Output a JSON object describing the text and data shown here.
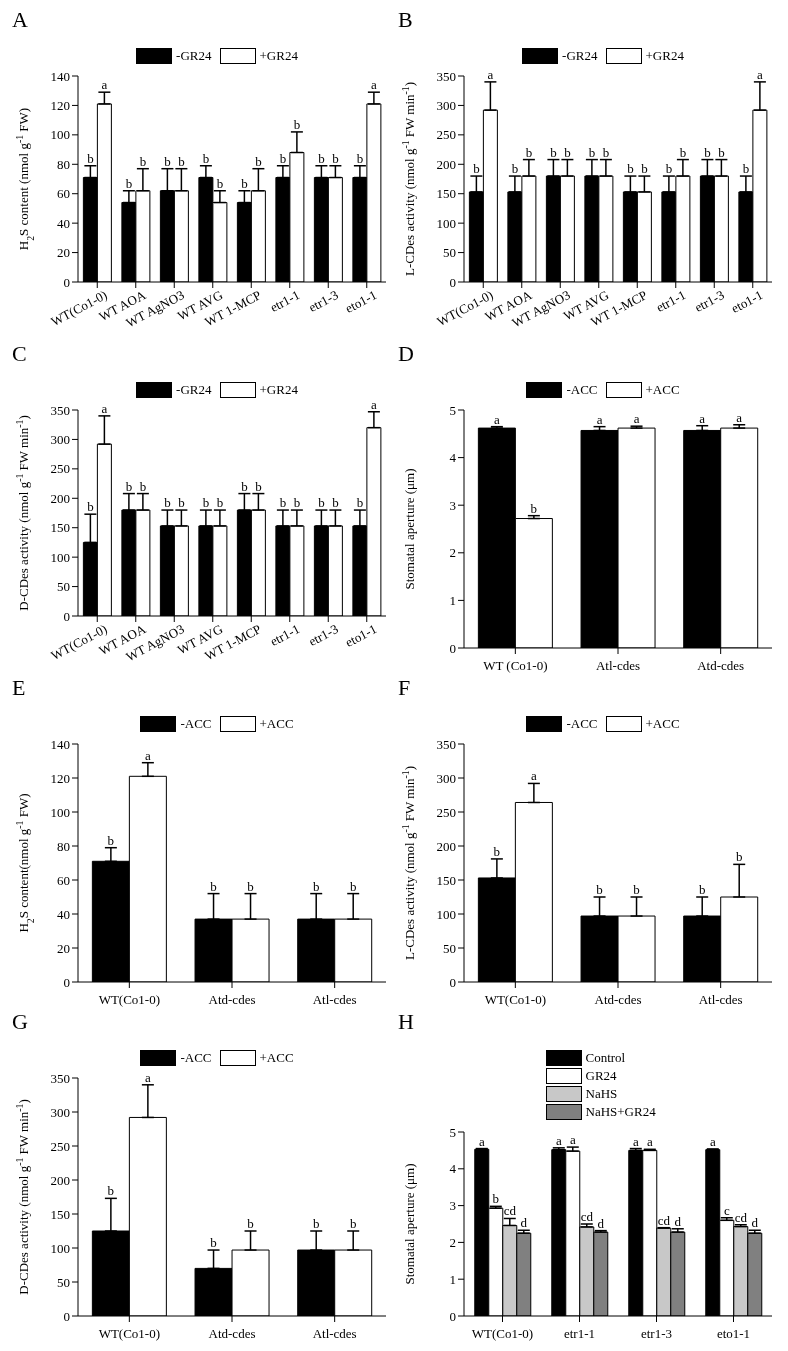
{
  "chart_data": [
    {
      "type": "bar",
      "title": "A",
      "ylabel": "H$_{2}$S content (nmol g$^{-1}$ FW)",
      "categories": [
        "WT(Co1-0)",
        "WT AOA",
        "WT AgNO3",
        "WT AVG",
        "WT 1-MCP",
        "etr1-1",
        "etr1-3",
        "eto1-1"
      ],
      "ylim": [
        0,
        140
      ],
      "yticks": [
        0,
        20,
        40,
        60,
        80,
        100,
        120,
        140
      ],
      "legend": "top",
      "series": [
        {
          "name": "-GR24",
          "color": "#000000",
          "values": [
            71,
            54,
            62,
            71,
            54,
            71,
            71,
            71
          ],
          "errors": [
            [
              71,
              79
            ],
            [
              54,
              62
            ],
            [
              62,
              77
            ],
            [
              71,
              79
            ],
            [
              54,
              62
            ],
            [
              71,
              79
            ],
            [
              71,
              79
            ],
            [
              71,
              79
            ]
          ],
          "value_labels": [
            "b",
            "b",
            "b",
            "b",
            "b",
            "b",
            "b",
            "b"
          ]
        },
        {
          "name": "+GR24",
          "color": "#ffffff",
          "values": [
            121,
            62,
            62,
            54,
            62,
            88,
            71,
            121
          ],
          "errors": [
            [
              121,
              129
            ],
            [
              62,
              77
            ],
            [
              62,
              77
            ],
            [
              54,
              62
            ],
            [
              62,
              77
            ],
            [
              88,
              102
            ],
            [
              71,
              79
            ],
            [
              121,
              129
            ]
          ],
          "value_labels": [
            "a",
            "b",
            "b",
            "b",
            "b",
            "b",
            "b",
            "a"
          ]
        }
      ]
    },
    {
      "type": "bar",
      "title": "B",
      "ylabel": "L-CDes activity (nmol g$^{-1}$ FW min$^{-1}$)",
      "categories": [
        "WT(Co1-0)",
        "WT AOA",
        "WT AgNO3",
        "WT AVG",
        "WT 1-MCP",
        "etr1-1",
        "etr1-3",
        "eto1-1"
      ],
      "ylim": [
        0,
        350
      ],
      "yticks": [
        0,
        50,
        100,
        150,
        200,
        250,
        300,
        350
      ],
      "legend": "top",
      "series": [
        {
          "name": "-GR24",
          "color": "#000000",
          "values": [
            153,
            153,
            180,
            180,
            153,
            153,
            180,
            153
          ],
          "errors": [
            [
              153,
              180
            ],
            [
              153,
              180
            ],
            [
              180,
              208
            ],
            [
              180,
              208
            ],
            [
              153,
              180
            ],
            [
              153,
              180
            ],
            [
              180,
              208
            ],
            [
              153,
              180
            ]
          ],
          "value_labels": [
            "b",
            "b",
            "b",
            "b",
            "b",
            "b",
            "b",
            "b"
          ]
        },
        {
          "name": "+GR24",
          "color": "#ffffff",
          "values": [
            292,
            180,
            180,
            180,
            153,
            180,
            180,
            292
          ],
          "errors": [
            [
              292,
              340
            ],
            [
              180,
              208
            ],
            [
              180,
              208
            ],
            [
              180,
              208
            ],
            [
              153,
              180
            ],
            [
              180,
              208
            ],
            [
              180,
              208
            ],
            [
              292,
              340
            ]
          ],
          "value_labels": [
            "a",
            "b",
            "b",
            "b",
            "b",
            "b",
            "b",
            "a"
          ]
        }
      ]
    },
    {
      "type": "bar",
      "title": "C",
      "ylabel": "D-CDes activity (nmol g$^{-1}$ FW min$^{-1}$)",
      "categories": [
        "WT(Co1-0)",
        "WT AOA",
        "WT AgNO3",
        "WT AVG",
        "WT 1-MCP",
        "etr1-1",
        "etr1-3",
        "eto1-1"
      ],
      "ylim": [
        0,
        350
      ],
      "yticks": [
        0,
        50,
        100,
        150,
        200,
        250,
        300,
        350
      ],
      "legend": "top",
      "series": [
        {
          "name": "-GR24",
          "color": "#000000",
          "values": [
            125,
            180,
            153,
            153,
            180,
            153,
            153,
            153
          ],
          "errors": [
            [
              125,
              173
            ],
            [
              180,
              208
            ],
            [
              153,
              180
            ],
            [
              153,
              180
            ],
            [
              180,
              208
            ],
            [
              153,
              180
            ],
            [
              153,
              180
            ],
            [
              153,
              180
            ]
          ],
          "value_labels": [
            "b",
            "b",
            "b",
            "b",
            "b",
            "b",
            "b",
            "b"
          ]
        },
        {
          "name": "+GR24",
          "color": "#ffffff",
          "values": [
            292,
            180,
            153,
            153,
            180,
            153,
            153,
            320
          ],
          "errors": [
            [
              292,
              340
            ],
            [
              180,
              208
            ],
            [
              153,
              180
            ],
            [
              153,
              180
            ],
            [
              180,
              208
            ],
            [
              153,
              180
            ],
            [
              153,
              180
            ],
            [
              320,
              347
            ]
          ],
          "value_labels": [
            "a",
            "b",
            "b",
            "b",
            "b",
            "b",
            "b",
            "a"
          ]
        }
      ]
    },
    {
      "type": "bar",
      "title": "D",
      "ylabel": "Stomatal aperture (μm)",
      "categories": [
        "WT (Co1-0)",
        "Atl-cdes",
        "Atd-cdes"
      ],
      "ylim": [
        0,
        5
      ],
      "yticks": [
        0,
        1,
        2,
        3,
        4,
        5
      ],
      "legend": "top",
      "series": [
        {
          "name": "-ACC",
          "color": "#000000",
          "values": [
            4.62,
            4.57,
            4.57
          ],
          "errors": [
            [
              4.62,
              4.65
            ],
            [
              4.57,
              4.65
            ],
            [
              4.57,
              4.67
            ]
          ],
          "value_labels": [
            "a",
            "a",
            "a"
          ]
        },
        {
          "name": "+ACC",
          "color": "#ffffff",
          "values": [
            2.72,
            4.62,
            4.62
          ],
          "errors": [
            [
              2.72,
              2.78
            ],
            [
              4.62,
              4.66
            ],
            [
              4.62,
              4.69
            ]
          ],
          "value_labels": [
            "b",
            "a",
            "a"
          ]
        }
      ]
    },
    {
      "type": "bar",
      "title": "E",
      "ylabel": "H$_{2}$S content(nmol g$^{-1}$ FW)",
      "categories": [
        "WT(Co1-0)",
        "Atd-cdes",
        "Atl-cdes"
      ],
      "ylim": [
        0,
        140
      ],
      "yticks": [
        0,
        20,
        40,
        60,
        80,
        100,
        120,
        140
      ],
      "legend": "top",
      "series": [
        {
          "name": "-ACC",
          "color": "#000000",
          "values": [
            71,
            37,
            37
          ],
          "errors": [
            [
              71,
              79
            ],
            [
              37,
              52
            ],
            [
              37,
              52
            ]
          ],
          "value_labels": [
            "b",
            "b",
            "b"
          ]
        },
        {
          "name": "+ACC",
          "color": "#ffffff",
          "values": [
            121,
            37,
            37
          ],
          "errors": [
            [
              121,
              129
            ],
            [
              37,
              52
            ],
            [
              37,
              52
            ]
          ],
          "value_labels": [
            "a",
            "b",
            "b"
          ]
        }
      ]
    },
    {
      "type": "bar",
      "title": "F",
      "ylabel": "L-CDes activity (nmol g$^{-1}$ FW min$^{-1}$)",
      "categories": [
        "WT(Co1-0)",
        "Atd-cdes",
        "Atl-cdes"
      ],
      "ylim": [
        0,
        350
      ],
      "yticks": [
        0,
        50,
        100,
        150,
        200,
        250,
        300,
        350
      ],
      "legend": "top",
      "series": [
        {
          "name": "-ACC",
          "color": "#000000",
          "values": [
            153,
            97,
            97
          ],
          "errors": [
            [
              153,
              181
            ],
            [
              97,
              125
            ],
            [
              97,
              125
            ]
          ],
          "value_labels": [
            "b",
            "b",
            "b"
          ]
        },
        {
          "name": "+ACC",
          "color": "#ffffff",
          "values": [
            264,
            97,
            125
          ],
          "errors": [
            [
              264,
              292
            ],
            [
              97,
              125
            ],
            [
              125,
              173
            ]
          ],
          "value_labels": [
            "a",
            "b",
            "b"
          ]
        }
      ]
    },
    {
      "type": "bar",
      "title": "G",
      "ylabel": "D-CDes activity (nmol g$^{-1}$ FW min$^{-1}$)",
      "categories": [
        "WT(Co1-0)",
        "Atd-cdes",
        "Atl-cdes"
      ],
      "ylim": [
        0,
        350
      ],
      "yticks": [
        0,
        50,
        100,
        150,
        200,
        250,
        300,
        350
      ],
      "legend": "top",
      "series": [
        {
          "name": "-ACC",
          "color": "#000000",
          "values": [
            125,
            70,
            97
          ],
          "errors": [
            [
              125,
              173
            ],
            [
              70,
              97
            ],
            [
              97,
              125
            ]
          ],
          "value_labels": [
            "b",
            "b",
            "b"
          ]
        },
        {
          "name": "+ACC",
          "color": "#ffffff",
          "values": [
            292,
            97,
            97
          ],
          "errors": [
            [
              292,
              340
            ],
            [
              97,
              125
            ],
            [
              97,
              125
            ]
          ],
          "value_labels": [
            "a",
            "b",
            "b"
          ]
        }
      ]
    },
    {
      "type": "bar",
      "title": "H",
      "ylabel": "Stomatal aperture (μm)",
      "categories": [
        "WT(Co1-0)",
        "etr1-1",
        "etr1-3",
        "eto1-1"
      ],
      "ylim": [
        0,
        5
      ],
      "yticks": [
        0,
        1,
        2,
        3,
        4,
        5
      ],
      "legend": "top",
      "series": [
        {
          "name": "Control",
          "color": "#000000",
          "values": [
            4.53,
            4.52,
            4.5,
            4.52
          ],
          "errors": [
            [
              4.53,
              4.55
            ],
            [
              4.52,
              4.57
            ],
            [
              4.5,
              4.55
            ],
            [
              4.52,
              4.54
            ]
          ],
          "value_labels": [
            "a",
            "a",
            "a",
            "a"
          ]
        },
        {
          "name": "GR24",
          "color": "#ffffff",
          "values": [
            2.93,
            4.48,
            4.5,
            2.6
          ],
          "errors": [
            [
              2.93,
              2.98
            ],
            [
              4.48,
              4.59
            ],
            [
              4.5,
              4.53
            ],
            [
              2.6,
              2.67
            ]
          ],
          "value_labels": [
            "b",
            "a",
            "a",
            "c"
          ]
        },
        {
          "name": "NaHS",
          "color": "#c8c8c8",
          "values": [
            2.46,
            2.42,
            2.39,
            2.43
          ],
          "errors": [
            [
              2.46,
              2.65
            ],
            [
              2.42,
              2.5
            ],
            [
              2.39,
              2.4
            ],
            [
              2.43,
              2.48
            ]
          ],
          "value_labels": [
            "cd",
            "cd",
            "cd",
            "cd"
          ]
        },
        {
          "name": "NaHS+GR24",
          "color": "#808080",
          "values": [
            2.25,
            2.28,
            2.28,
            2.25
          ],
          "errors": [
            [
              2.25,
              2.33
            ],
            [
              2.28,
              2.32
            ],
            [
              2.28,
              2.37
            ],
            [
              2.25,
              2.33
            ]
          ],
          "value_labels": [
            "d",
            "d",
            "d",
            "d"
          ]
        }
      ]
    }
  ]
}
